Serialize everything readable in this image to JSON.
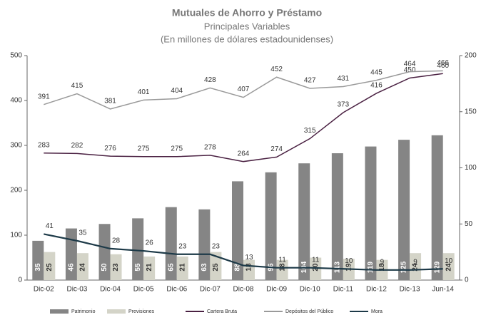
{
  "chart_data": {
    "type": "bar-line",
    "title": "Mutuales de Ahorro y Préstamo",
    "subtitle": "Principales Variables",
    "subtitle2": "(En millones de dólares estadounidenses)",
    "categories": [
      "Dic-02",
      "Dic-03",
      "Dic-04",
      "Dic-05",
      "Dic-06",
      "Dic-07",
      "Dic-08",
      "Dic-09",
      "Dic-10",
      "Dic-11",
      "Dic-12",
      "Dic-13",
      "Jun-14"
    ],
    "ylim": [
      0,
      500
    ],
    "yticks": [
      0,
      100,
      200,
      300,
      400,
      500
    ],
    "y2lim": [
      0,
      200
    ],
    "y2ticks": [
      0,
      50,
      100,
      150,
      200
    ],
    "series": [
      {
        "name": "Patrimonio",
        "kind": "bar",
        "axis": "y2",
        "color": "#858585",
        "values": [
          35,
          46,
          50,
          55,
          65,
          63,
          88,
          96,
          104,
          113,
          119,
          125,
          129
        ]
      },
      {
        "name": "Previsiones",
        "kind": "bar",
        "axis": "y2",
        "color": "#d4d4c8",
        "values": [
          25,
          24,
          23,
          21,
          21,
          25,
          18,
          18,
          20,
          19,
          18,
          24,
          24
        ]
      },
      {
        "name": "Cartera Bruta",
        "kind": "line",
        "color": "#4a2142",
        "values": [
          283,
          282,
          276,
          275,
          275,
          278,
          264,
          274,
          315,
          373,
          416,
          450,
          460
        ]
      },
      {
        "name": "Depósitos del Público",
        "kind": "line",
        "color": "#9a9a9a",
        "values": [
          391,
          415,
          381,
          401,
          404,
          428,
          407,
          452,
          427,
          431,
          445,
          464,
          466
        ]
      },
      {
        "name": "Mora",
        "kind": "line",
        "axis": "y2",
        "color": "#1d3a48",
        "values": [
          41,
          35,
          28,
          26,
          23,
          23,
          13,
          11,
          11,
          10,
          9,
          9,
          10
        ]
      }
    ]
  }
}
